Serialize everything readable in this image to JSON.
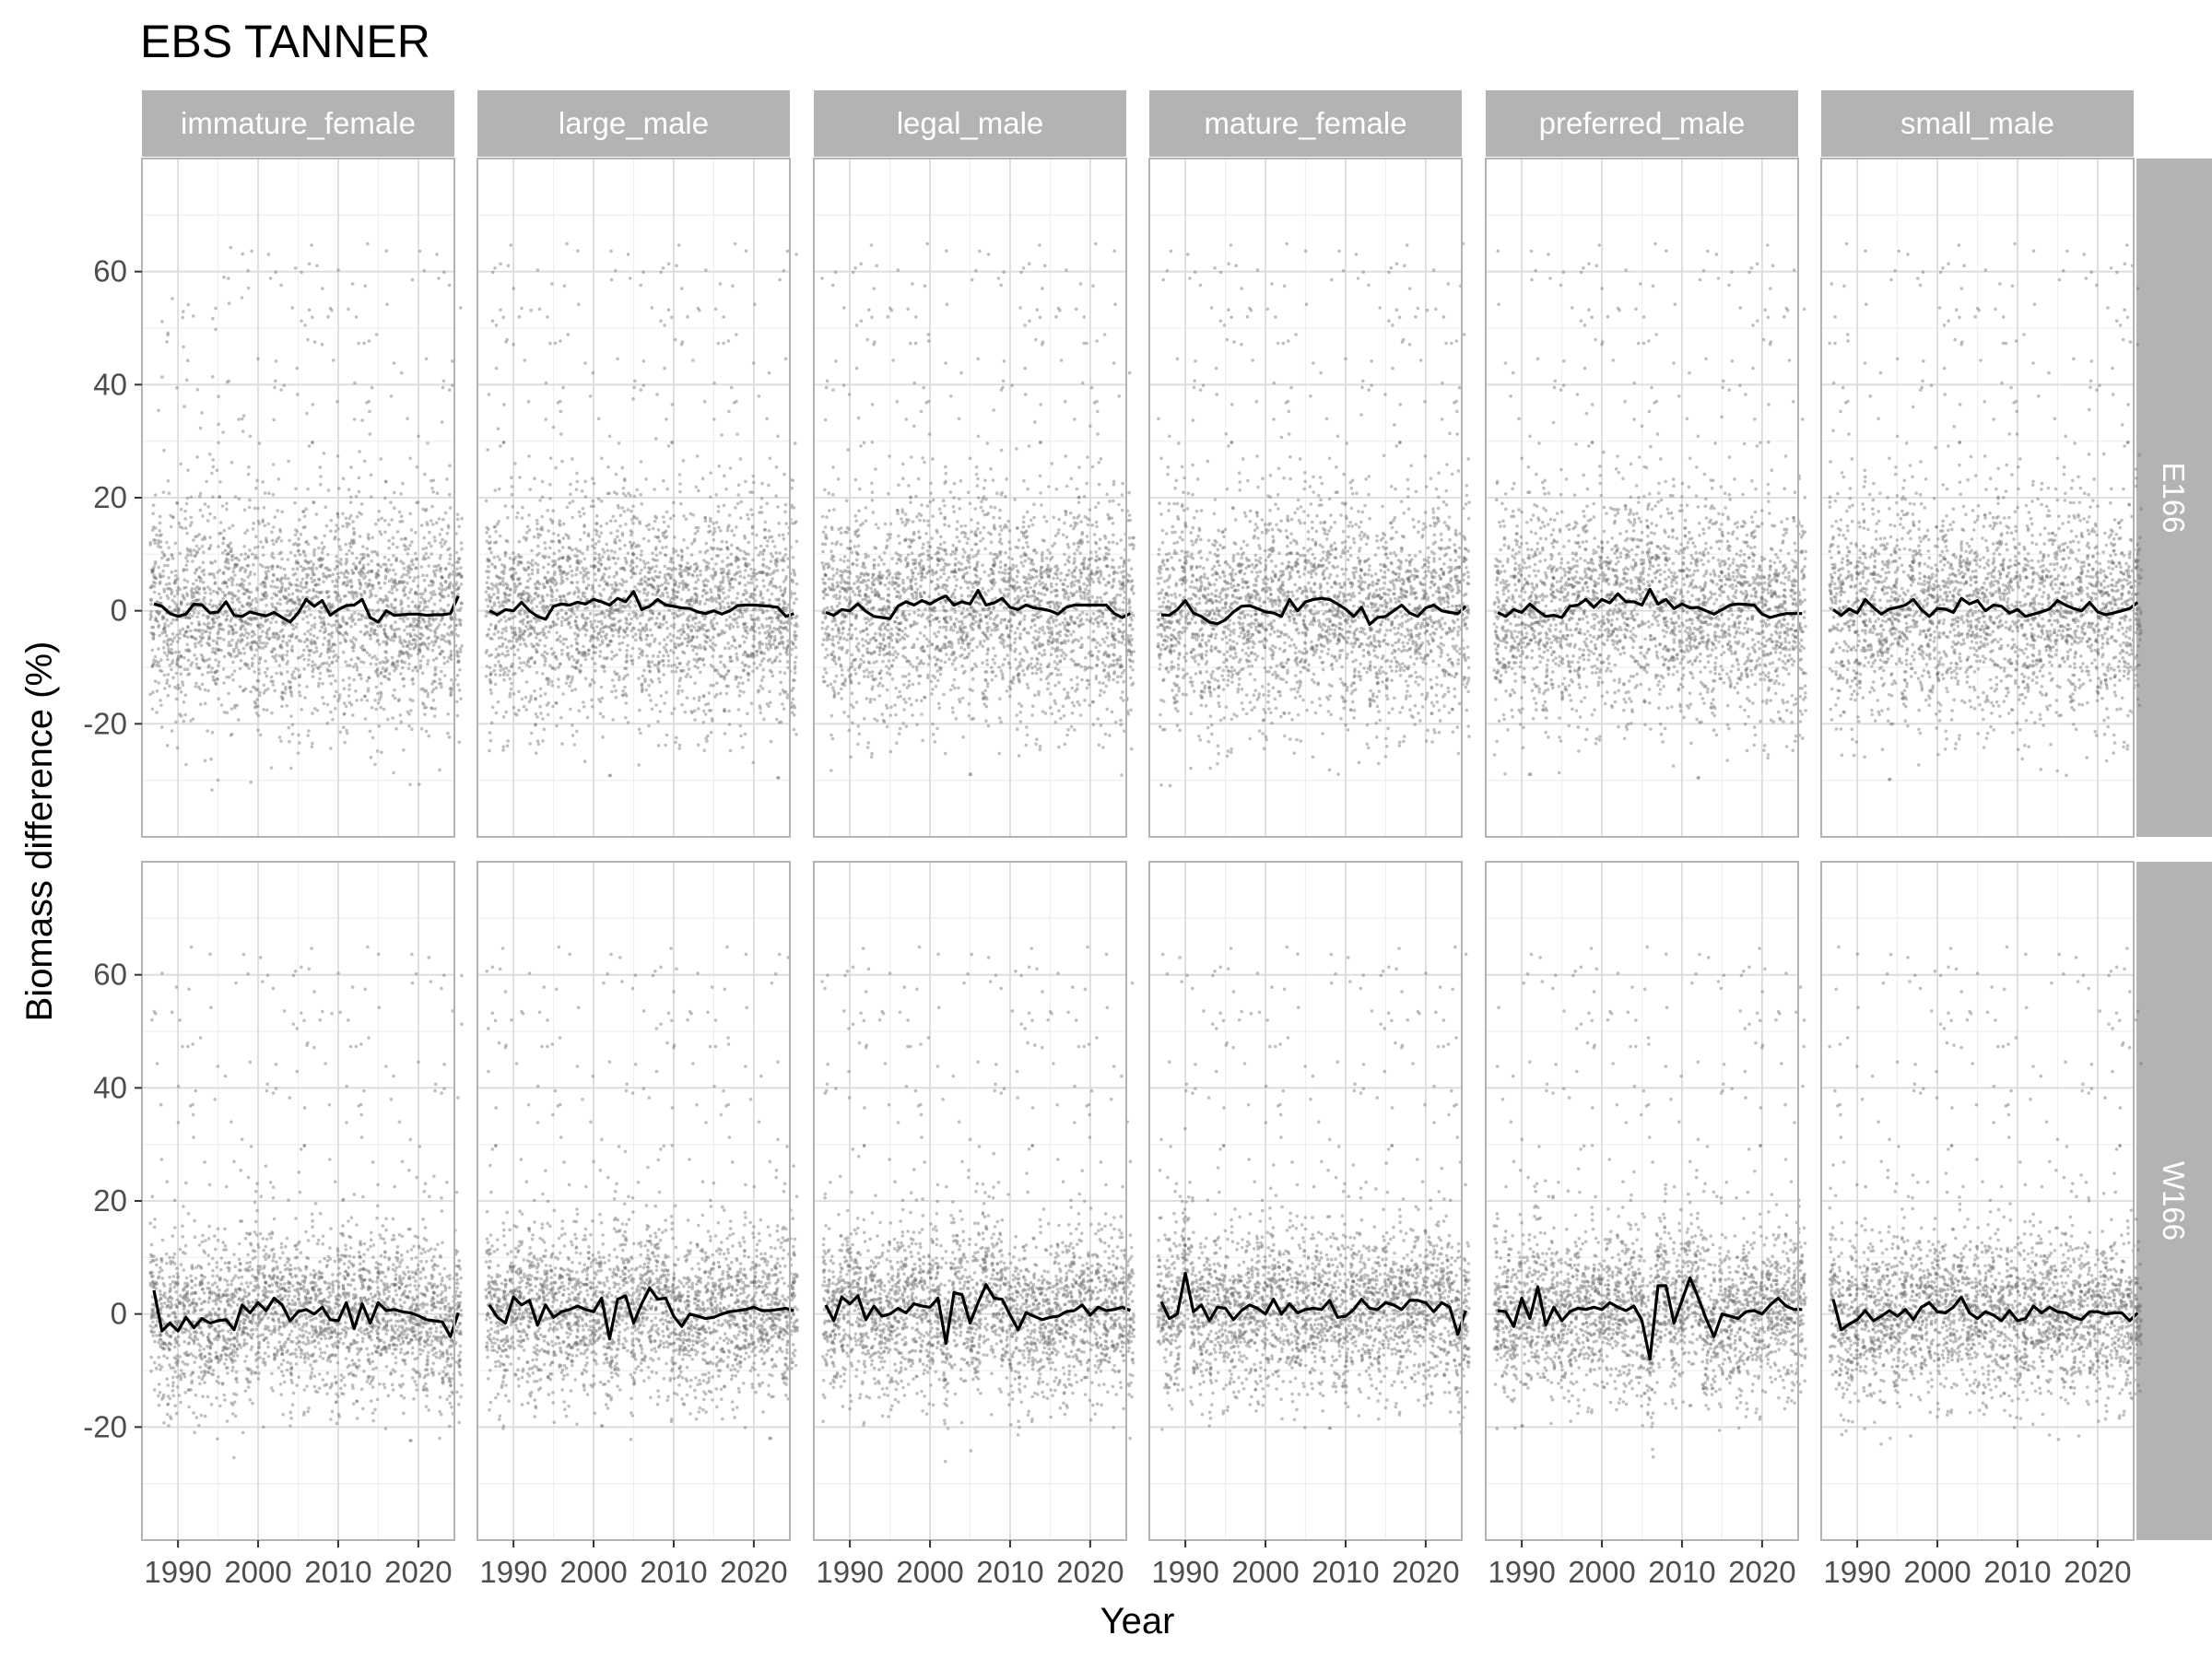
{
  "chart_data": {
    "type": "scatter",
    "title": "EBS TANNER",
    "xlabel": "Year",
    "ylabel": "Biomass difference (%)",
    "xlim": [
      1985.5,
      2024.5
    ],
    "ylim": [
      -40,
      80
    ],
    "x_ticks": [
      1990,
      2000,
      2010,
      2020
    ],
    "y_ticks": [
      -20,
      0,
      20,
      40,
      60
    ],
    "grid": true,
    "facet_columns": [
      "immature_female",
      "large_male",
      "legal_male",
      "mature_female",
      "preferred_male",
      "small_male"
    ],
    "facet_rows": [
      "E166",
      "W166"
    ],
    "points_description_series": "replicate points (gray, semi-transparent) with annual mean line (black)",
    "mean_series": [
      {
        "column": "immature_female",
        "row": "E166",
        "x_start": 1987,
        "values": [
          1.2,
          0.8,
          -0.5,
          -1.0,
          -0.6,
          1.2,
          1.0,
          -0.4,
          -0.2,
          1.6,
          -0.8,
          -1.0,
          -0.2,
          -0.6,
          -0.9,
          -0.3,
          -1.2,
          -2.0,
          -0.4,
          2.0,
          0.8,
          1.8,
          -0.8,
          0.2,
          0.9,
          1.0,
          2.0,
          -1.2,
          -2.0,
          0.0,
          -0.8,
          -0.7,
          -0.6,
          -0.6,
          -0.8,
          -0.7,
          -0.7,
          -0.5,
          2.6
        ]
      },
      {
        "column": "large_male",
        "row": "E166",
        "x_start": 1987,
        "values": [
          0.0,
          -0.7,
          0.2,
          0.0,
          1.5,
          0.0,
          -1.0,
          -1.5,
          0.8,
          1.2,
          1.0,
          1.5,
          1.2,
          2.0,
          1.6,
          1.0,
          2.2,
          1.6,
          3.4,
          0.2,
          0.8,
          2.0,
          1.0,
          0.8,
          0.5,
          0.4,
          -0.2,
          -0.5,
          0.0,
          -0.6,
          0.0,
          0.9,
          1.0,
          1.0,
          0.9,
          0.8,
          0.6,
          -1.0,
          -0.5
        ]
      },
      {
        "column": "legal_male",
        "row": "E166",
        "x_start": 1987,
        "values": [
          -0.3,
          -0.8,
          0.2,
          0.0,
          1.2,
          -0.1,
          -1.0,
          -1.2,
          -1.4,
          0.8,
          1.6,
          1.0,
          1.8,
          1.2,
          2.0,
          2.6,
          1.0,
          1.6,
          1.2,
          3.6,
          1.0,
          1.4,
          2.2,
          0.6,
          0.2,
          1.0,
          0.5,
          0.3,
          0.0,
          -0.6,
          0.6,
          1.0,
          1.0,
          1.0,
          1.0,
          1.0,
          -0.5,
          -1.2,
          -0.5
        ]
      },
      {
        "column": "mature_female",
        "row": "E166",
        "x_start": 1987,
        "values": [
          -0.7,
          -0.8,
          0.2,
          1.8,
          -0.4,
          -1.0,
          -2.0,
          -2.3,
          -1.6,
          -0.2,
          0.8,
          0.9,
          0.4,
          -0.2,
          -0.4,
          -1.0,
          2.0,
          0.0,
          1.6,
          2.0,
          2.2,
          2.0,
          1.2,
          0.3,
          -1.0,
          0.6,
          -2.4,
          -1.2,
          -1.0,
          0.0,
          1.0,
          -0.4,
          -1.0,
          0.5,
          1.0,
          0.0,
          -0.3,
          -0.5,
          0.8
        ]
      },
      {
        "column": "preferred_male",
        "row": "E166",
        "x_start": 1987,
        "values": [
          -0.3,
          -1.0,
          0.2,
          -0.3,
          1.2,
          0.0,
          -1.0,
          -0.8,
          -1.2,
          0.8,
          1.0,
          2.0,
          0.6,
          2.0,
          1.4,
          3.0,
          1.6,
          1.6,
          1.0,
          3.8,
          1.2,
          2.0,
          0.4,
          1.2,
          0.5,
          0.6,
          0.0,
          -0.6,
          0.2,
          1.0,
          1.2,
          1.1,
          1.0,
          -0.6,
          -1.2,
          -0.8,
          -0.5,
          -0.5,
          -0.5
        ]
      },
      {
        "column": "small_male",
        "row": "E166",
        "x_start": 1987,
        "values": [
          0.2,
          -0.8,
          0.3,
          -0.4,
          2.0,
          0.6,
          -0.6,
          0.3,
          0.6,
          1.0,
          2.0,
          0.2,
          -1.0,
          0.4,
          0.3,
          -0.3,
          2.2,
          1.2,
          1.8,
          0.0,
          1.0,
          0.8,
          -0.4,
          0.2,
          -1.0,
          -0.6,
          -0.2,
          0.3,
          1.8,
          1.0,
          0.4,
          0.0,
          1.5,
          -0.2,
          -0.7,
          -0.4,
          0.0,
          0.4,
          1.5
        ]
      },
      {
        "column": "immature_female",
        "row": "W166",
        "x_start": 1987,
        "values": [
          4.2,
          -3.0,
          -1.6,
          -3.0,
          -0.6,
          -2.4,
          -0.8,
          -1.6,
          -1.2,
          -1.0,
          -2.8,
          1.6,
          0.2,
          2.0,
          0.6,
          2.8,
          1.6,
          -1.2,
          0.4,
          0.8,
          0.0,
          1.2,
          -1.0,
          -1.2,
          2.0,
          -2.6,
          1.8,
          -1.6,
          2.0,
          0.6,
          0.8,
          0.4,
          0.2,
          -0.3,
          -1.0,
          -1.2,
          -1.4,
          -4.0,
          0.2
        ]
      },
      {
        "column": "large_male",
        "row": "W166",
        "x_start": 1987,
        "values": [
          1.6,
          -0.6,
          -1.6,
          3.0,
          1.6,
          2.4,
          -2.0,
          1.6,
          -0.6,
          0.4,
          0.8,
          1.4,
          0.8,
          0.4,
          2.8,
          -4.4,
          2.6,
          3.2,
          -1.6,
          1.8,
          4.6,
          2.6,
          2.8,
          -0.4,
          -2.2,
          0.0,
          -0.4,
          -0.8,
          -0.6,
          0.0,
          0.4,
          0.6,
          0.8,
          1.2,
          0.6,
          0.6,
          0.8,
          1.0,
          0.6
        ]
      },
      {
        "column": "legal_male",
        "row": "W166",
        "x_start": 1987,
        "values": [
          1.6,
          -1.2,
          3.0,
          1.8,
          3.2,
          -1.0,
          1.4,
          -0.4,
          0.0,
          1.0,
          0.2,
          1.8,
          1.4,
          1.2,
          2.8,
          -5.2,
          3.8,
          3.4,
          -1.6,
          2.0,
          5.2,
          2.8,
          2.6,
          -0.2,
          -2.8,
          0.2,
          -0.4,
          -1.0,
          -0.6,
          -0.4,
          0.4,
          0.6,
          1.6,
          -0.2,
          1.2,
          0.6,
          0.8,
          1.2,
          0.6
        ]
      },
      {
        "column": "mature_female",
        "row": "W166",
        "x_start": 1987,
        "values": [
          2.2,
          -0.8,
          0.0,
          7.2,
          0.4,
          1.6,
          -1.2,
          1.2,
          1.0,
          -1.0,
          0.6,
          1.6,
          1.0,
          0.0,
          2.6,
          0.0,
          1.8,
          0.2,
          0.8,
          1.0,
          0.8,
          2.4,
          -0.6,
          -0.4,
          0.8,
          2.6,
          1.0,
          0.8,
          2.0,
          1.6,
          0.8,
          2.4,
          2.4,
          2.0,
          0.4,
          2.0,
          1.2,
          -3.6,
          0.6
        ]
      },
      {
        "column": "preferred_male",
        "row": "W166",
        "x_start": 1987,
        "values": [
          0.6,
          0.4,
          -2.2,
          2.8,
          -0.8,
          4.8,
          -2.0,
          1.2,
          -1.2,
          0.4,
          1.0,
          0.8,
          1.2,
          0.8,
          2.0,
          1.2,
          0.6,
          1.4,
          -1.2,
          -8.0,
          5.0,
          5.0,
          -1.6,
          2.4,
          6.4,
          3.0,
          -0.8,
          -4.0,
          0.0,
          -0.4,
          -0.8,
          0.4,
          0.6,
          0.0,
          1.6,
          2.8,
          1.4,
          0.8,
          0.8
        ]
      },
      {
        "column": "small_male",
        "row": "W166",
        "x_start": 1987,
        "values": [
          2.6,
          -2.8,
          -1.8,
          -1.0,
          0.6,
          -1.2,
          -0.4,
          0.6,
          -0.4,
          0.8,
          -1.0,
          1.2,
          2.0,
          0.4,
          0.2,
          1.2,
          3.0,
          0.2,
          -0.8,
          0.4,
          -0.2,
          -1.2,
          0.6,
          -1.2,
          -0.8,
          1.4,
          0.2,
          1.2,
          0.4,
          0.2,
          -0.6,
          -1.0,
          0.4,
          0.4,
          0.0,
          0.2,
          0.2,
          -1.2,
          0.2
        ]
      }
    ]
  },
  "colors": {
    "panel_border": "#b3b3b3",
    "strip_fill": "#b3b3b3",
    "grid_major": "#dcdcdc",
    "grid_minor": "#efefef",
    "points": "#707070",
    "mean_line": "#000000"
  }
}
